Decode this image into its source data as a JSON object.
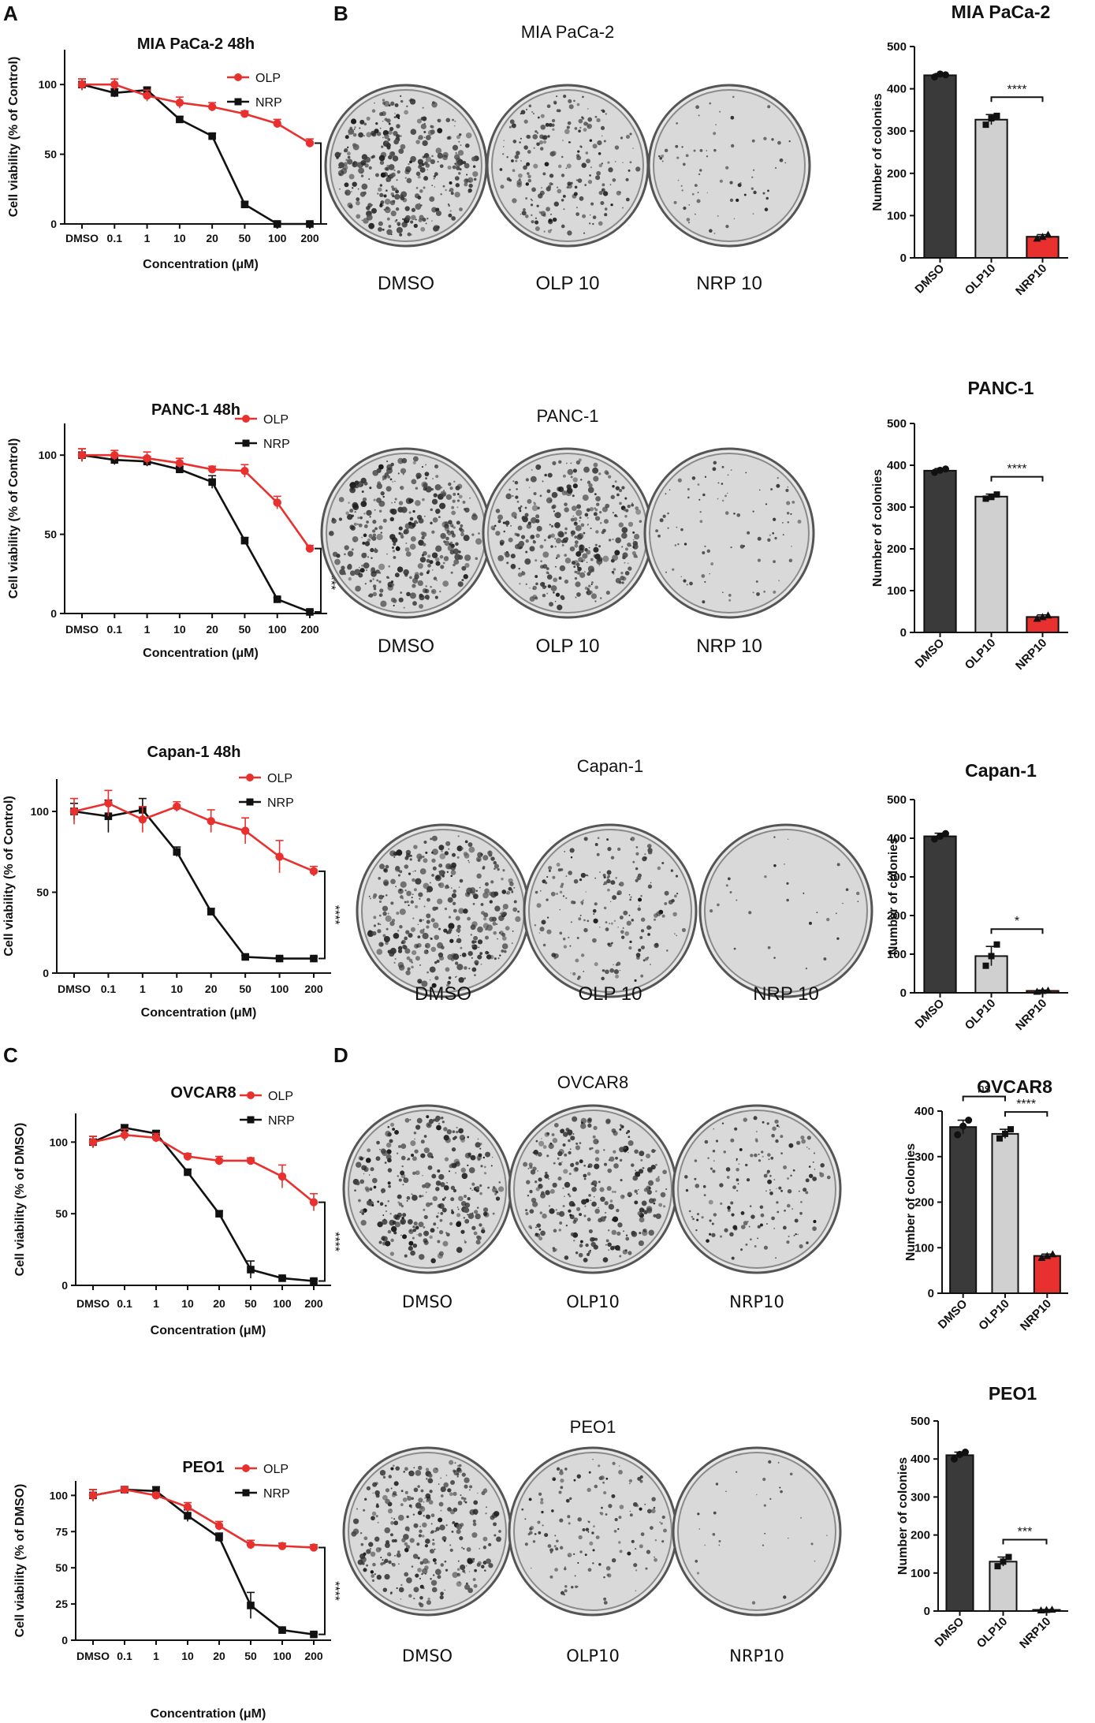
{
  "panel_labels": {
    "a": "A",
    "b": "B",
    "c": "C",
    "d": "D"
  },
  "colors": {
    "olp": "#e8312f",
    "nrp": "#111111",
    "dmso_bar": "#3a3a3a",
    "olp_bar": "#d0d0d0",
    "nrp_bar": "#e8312f"
  },
  "dish_rows": [
    {
      "title": "MIA PaCa-2",
      "labels": [
        "DMSO",
        "OLP 10",
        "NRP 10"
      ]
    },
    {
      "title": "PANC-1",
      "labels": [
        "DMSO",
        "OLP 10",
        "NRP 10"
      ]
    },
    {
      "title": "Capan-1",
      "labels": [
        "DMSO",
        "OLP 10",
        "NRP 10"
      ]
    },
    {
      "title": "OVCAR8",
      "labels": [
        "DMSO",
        "OLP10",
        "NRP10"
      ]
    },
    {
      "title": "PEO1",
      "labels": [
        "DMSO",
        "OLP10",
        "NRP10"
      ]
    }
  ],
  "chart_data": [
    {
      "type": "line",
      "title": "MIA PaCa-2 48h",
      "xlabel": "Concentration (μM)",
      "ylabel": "Cell viability (% of Control)",
      "categories": [
        "DMSO",
        "0.1",
        "1",
        "10",
        "20",
        "50",
        "100",
        "200"
      ],
      "ylim": [
        0,
        125
      ],
      "yticks": [
        0,
        50,
        100
      ],
      "legend": [
        "OLP",
        "NRP"
      ],
      "significance": "****",
      "series": [
        {
          "name": "OLP",
          "values": [
            100,
            100,
            92,
            87,
            84,
            79,
            72,
            58
          ],
          "err": [
            4,
            4,
            4,
            4,
            3,
            2,
            3,
            3
          ]
        },
        {
          "name": "NRP",
          "values": [
            100,
            94,
            96,
            75,
            63,
            14,
            0,
            0
          ],
          "err": [
            4,
            3,
            2,
            2,
            2,
            2,
            1,
            1
          ]
        }
      ]
    },
    {
      "type": "bar",
      "title": "MIA PaCa-2",
      "ylabel": "Number of colonies",
      "categories": [
        "DMSO",
        "OLP10",
        "NRP10"
      ],
      "values": [
        432,
        327,
        50
      ],
      "err": [
        4,
        12,
        5
      ],
      "points": [
        [
          428,
          435,
          433
        ],
        [
          315,
          330,
          336
        ],
        [
          46,
          50,
          55
        ]
      ],
      "ylim": [
        0,
        500
      ],
      "yticks": [
        0,
        100,
        200,
        300,
        400,
        500
      ],
      "annotations": [
        {
          "from": 1,
          "to": 2,
          "label": "****"
        }
      ]
    },
    {
      "type": "line",
      "title": "PANC-1 48h",
      "xlabel": "Concentration (μM)",
      "ylabel": "Cell viability (% of Control)",
      "categories": [
        "DMSO",
        "0.1",
        "1",
        "10",
        "20",
        "50",
        "100",
        "200"
      ],
      "ylim": [
        0,
        120
      ],
      "yticks": [
        0,
        50,
        100
      ],
      "legend": [
        "OLP",
        "NRP"
      ],
      "significance": "****",
      "series": [
        {
          "name": "OLP",
          "values": [
            100,
            100,
            98,
            95,
            91,
            90,
            70,
            41
          ],
          "err": [
            4,
            3,
            4,
            3,
            2,
            4,
            4,
            2
          ]
        },
        {
          "name": "NRP",
          "values": [
            100,
            97,
            96,
            91,
            83,
            46,
            9,
            1
          ],
          "err": [
            4,
            3,
            3,
            2,
            4,
            2,
            1,
            1
          ]
        }
      ]
    },
    {
      "type": "bar",
      "title": "PANC-1",
      "ylabel": "Number of colonies",
      "categories": [
        "DMSO",
        "OLP10",
        "NRP10"
      ],
      "values": [
        387,
        325,
        37
      ],
      "err": [
        5,
        6,
        5
      ],
      "points": [
        [
          383,
          388,
          391
        ],
        [
          320,
          324,
          330
        ],
        [
          33,
          37,
          41
        ]
      ],
      "ylim": [
        0,
        500
      ],
      "yticks": [
        0,
        100,
        200,
        300,
        400,
        500
      ],
      "annotations": [
        {
          "from": 1,
          "to": 2,
          "label": "****"
        }
      ]
    },
    {
      "type": "line",
      "title": "Capan-1 48h",
      "xlabel": "Concentration (μM)",
      "ylabel": "Cell viability (% of Control)",
      "categories": [
        "DMSO",
        "0.1",
        "1",
        "10",
        "20",
        "50",
        "100",
        "200"
      ],
      "ylim": [
        0,
        120
      ],
      "yticks": [
        0,
        50,
        100
      ],
      "legend": [
        "OLP",
        "NRP"
      ],
      "significance": "****",
      "series": [
        {
          "name": "OLP",
          "values": [
            100,
            105,
            95,
            103,
            94,
            88,
            72,
            63
          ],
          "err": [
            8,
            8,
            8,
            3,
            7,
            8,
            10,
            3
          ]
        },
        {
          "name": "NRP",
          "values": [
            100,
            97,
            101,
            75,
            38,
            10,
            9,
            9
          ],
          "err": [
            5,
            10,
            7,
            3,
            2,
            1,
            1,
            1
          ]
        }
      ]
    },
    {
      "type": "bar",
      "title": "Capan-1",
      "ylabel": "Number of colonies",
      "categories": [
        "DMSO",
        "OLP10",
        "NRP10"
      ],
      "values": [
        405,
        95,
        5
      ],
      "err": [
        8,
        25,
        2
      ],
      "points": [
        [
          398,
          405,
          412
        ],
        [
          70,
          95,
          125
        ],
        [
          3,
          5,
          6
        ]
      ],
      "ylim": [
        0,
        500
      ],
      "yticks": [
        0,
        100,
        200,
        300,
        400,
        500
      ],
      "annotations": [
        {
          "from": 1,
          "to": 2,
          "label": "*"
        }
      ]
    },
    {
      "type": "line",
      "title": "OVCAR8",
      "xlabel": "Concentration (μM)",
      "ylabel": "Cell viability (% of DMSO)",
      "categories": [
        "DMSO",
        "0.1",
        "1",
        "10",
        "20",
        "50",
        "100",
        "200"
      ],
      "ylim": [
        0,
        120
      ],
      "yticks": [
        0,
        50,
        100
      ],
      "legend": [
        "OLP",
        "NRP"
      ],
      "significance": "****",
      "series": [
        {
          "name": "OLP",
          "values": [
            100,
            105,
            103,
            90,
            87,
            87,
            76,
            58
          ],
          "err": [
            4,
            4,
            3,
            2,
            3,
            2,
            8,
            6
          ]
        },
        {
          "name": "NRP",
          "values": [
            100,
            110,
            106,
            79,
            50,
            11,
            5,
            3
          ],
          "err": [
            4,
            2,
            2,
            2,
            2,
            6,
            1,
            1
          ]
        }
      ]
    },
    {
      "type": "bar",
      "title": "OVCAR8",
      "ylabel": "Number of colonies",
      "categories": [
        "DMSO",
        "OLP10",
        "NRP10"
      ],
      "values": [
        365,
        350,
        82
      ],
      "err": [
        15,
        10,
        4
      ],
      "points": [
        [
          348,
          367,
          380
        ],
        [
          340,
          350,
          360
        ],
        [
          78,
          82,
          86
        ]
      ],
      "ylim": [
        0,
        400
      ],
      "yticks": [
        0,
        100,
        200,
        300,
        400
      ],
      "annotations": [
        {
          "from": 0,
          "to": 1,
          "label": "ns"
        },
        {
          "from": 1,
          "to": 2,
          "label": "****"
        }
      ]
    },
    {
      "type": "line",
      "title": "PEO1",
      "xlabel": "Concentration (μM)",
      "ylabel": "Cell viability (% of DMSO)",
      "categories": [
        "DMSO",
        "0.1",
        "1",
        "10",
        "20",
        "50",
        "100",
        "200"
      ],
      "ylim": [
        0,
        110
      ],
      "yticks": [
        0,
        25,
        50,
        75,
        100
      ],
      "legend": [
        "OLP",
        "NRP"
      ],
      "significance": "****",
      "series": [
        {
          "name": "OLP",
          "values": [
            100,
            104,
            100,
            92,
            79,
            66,
            65,
            64
          ],
          "err": [
            4,
            2,
            2,
            3,
            3,
            3,
            2,
            2
          ]
        },
        {
          "name": "NRP",
          "values": [
            100,
            104,
            103,
            86,
            71,
            24,
            7,
            4
          ],
          "err": [
            4,
            2,
            3,
            4,
            3,
            9,
            1,
            1
          ]
        }
      ]
    },
    {
      "type": "bar",
      "title": "PEO1",
      "ylabel": "Number of colonies",
      "categories": [
        "DMSO",
        "OLP10",
        "NRP10"
      ],
      "values": [
        410,
        130,
        3
      ],
      "err": [
        8,
        12,
        1
      ],
      "points": [
        [
          400,
          412,
          418
        ],
        [
          118,
          130,
          142
        ],
        [
          2,
          3,
          4
        ]
      ],
      "ylim": [
        0,
        500
      ],
      "yticks": [
        0,
        100,
        200,
        300,
        400,
        500
      ],
      "annotations": [
        {
          "from": 1,
          "to": 2,
          "label": "***"
        }
      ]
    }
  ]
}
